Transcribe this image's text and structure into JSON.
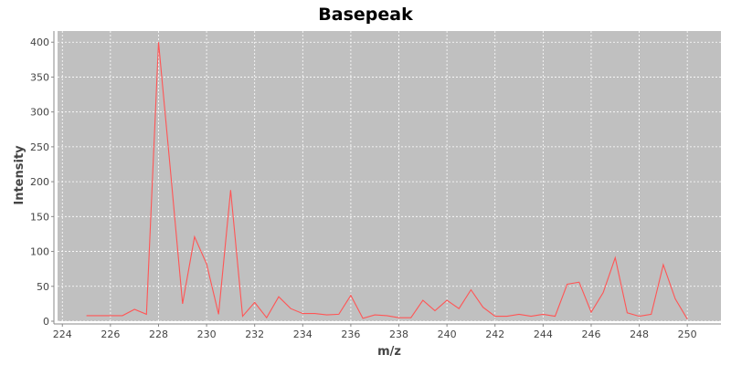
{
  "chart_data": {
    "type": "line",
    "title": "Basepeak",
    "xlabel": "m/z",
    "ylabel": "Intensity",
    "xlim": [
      223.8,
      251.4
    ],
    "ylim": [
      0,
      416
    ],
    "xticks": [
      224,
      226,
      228,
      230,
      232,
      234,
      236,
      238,
      240,
      242,
      244,
      246,
      248,
      250
    ],
    "yticks": [
      0,
      50,
      100,
      150,
      200,
      250,
      300,
      350,
      400
    ],
    "grid": true,
    "legend": "none",
    "colors": {
      "plot_background": "#c0c0c0",
      "grid": "#ffffff",
      "series": "#ff5555",
      "axis": "#888888"
    },
    "series": [
      {
        "x": [
          225,
          225.5,
          226,
          226.5,
          227,
          227.5,
          228,
          228.5,
          229,
          229.5,
          230,
          230.5,
          231,
          231.5,
          232,
          232.5,
          233,
          233.5,
          234,
          234.5,
          235,
          235.5,
          236,
          236.5,
          237,
          237.5,
          238,
          238.5,
          239,
          239.5,
          240,
          240.5,
          241,
          241.5,
          242,
          242.5,
          243,
          243.5,
          244,
          244.5,
          245,
          245.5,
          246,
          246.5,
          247,
          247.5,
          248,
          248.5,
          249,
          249.5,
          250
        ],
        "values": [
          8,
          8,
          8,
          8,
          17,
          10,
          400,
          215,
          25,
          121,
          82,
          10,
          188,
          7,
          27,
          5,
          35,
          18,
          11,
          11,
          9,
          10,
          37,
          4,
          9,
          8,
          5,
          5,
          30,
          15,
          30,
          18,
          45,
          20,
          7,
          7,
          10,
          7,
          10,
          7,
          53,
          56,
          13,
          41,
          91,
          12,
          7,
          10,
          81,
          32,
          3
        ]
      }
    ]
  }
}
